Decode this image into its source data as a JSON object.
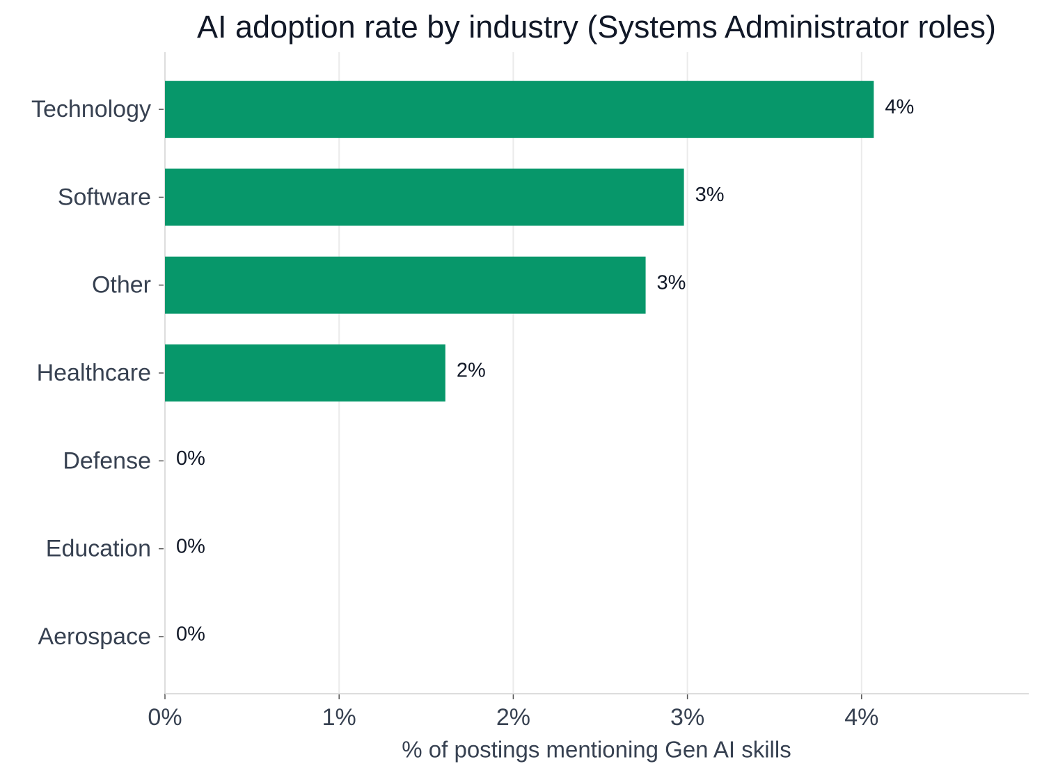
{
  "chart_data": {
    "type": "bar",
    "orientation": "horizontal",
    "title": "AI adoption rate by industry (Systems Administrator roles)",
    "xlabel": "% of postings mentioning Gen AI skills",
    "categories": [
      "Technology",
      "Software",
      "Other",
      "Healthcare",
      "Defense",
      "Education",
      "Aerospace"
    ],
    "values": [
      4.07,
      2.98,
      2.76,
      1.61,
      0,
      0,
      0
    ],
    "value_labels": [
      "4%",
      "3%",
      "3%",
      "2%",
      "0%",
      "0%",
      "0%"
    ],
    "color": "#07976a",
    "xlim": [
      0,
      4.96
    ],
    "xticks": [
      {
        "value": 0,
        "label": "0%"
      },
      {
        "value": 1,
        "label": "1%"
      },
      {
        "value": 2,
        "label": "2%"
      },
      {
        "value": 3,
        "label": "3%"
      },
      {
        "value": 4,
        "label": "4%"
      }
    ],
    "grid": true
  }
}
